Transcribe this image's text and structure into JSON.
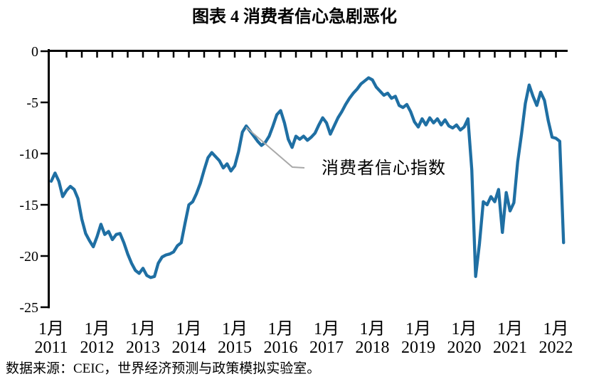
{
  "title": "图表 4 消费者信心急剧恶化",
  "source_note": "数据来源：CEIC，世界经济预测与政策模拟实验室。",
  "annotation": {
    "label": "消费者信心指数"
  },
  "colors": {
    "line": "#1F6FA3",
    "axis": "#000000",
    "annotation_line": "#A9A9A9",
    "text": "#000000",
    "background": "#FFFFFF"
  },
  "chart_data": {
    "type": "line",
    "title": "图表 4 消费者信心急剧恶化",
    "xlabel": "",
    "ylabel": "",
    "ylim": [
      -25,
      0
    ],
    "y_ticks": [
      0,
      -5,
      -10,
      -15,
      -20,
      -25
    ],
    "grid": false,
    "legend_position": "inline-annotation",
    "x_start": "2011-01",
    "x_end": "2022-03",
    "frequency": "monthly",
    "x_tick_month_label": "1月",
    "x_tick_years": [
      "2011",
      "2012",
      "2013",
      "2014",
      "2015",
      "2016",
      "2017",
      "2018",
      "2019",
      "2020",
      "2021",
      "2022"
    ],
    "minor_x_ticks_every_months": 4,
    "series": [
      {
        "name": "消费者信心指数",
        "values": [
          -12.7,
          -11.9,
          -12.7,
          -14.2,
          -13.6,
          -13.2,
          -13.5,
          -14.4,
          -16.4,
          -17.8,
          -18.5,
          -19.1,
          -18.1,
          -16.9,
          -17.9,
          -17.6,
          -18.4,
          -17.9,
          -17.8,
          -18.7,
          -19.8,
          -20.7,
          -21.4,
          -21.7,
          -21.2,
          -21.9,
          -22.1,
          -22.0,
          -20.7,
          -20.1,
          -19.9,
          -19.8,
          -19.6,
          -19.0,
          -18.7,
          -16.8,
          -15.0,
          -14.7,
          -13.9,
          -12.9,
          -11.6,
          -10.4,
          -9.9,
          -10.3,
          -10.7,
          -11.4,
          -11.0,
          -11.7,
          -11.2,
          -9.8,
          -7.9,
          -7.3,
          -7.8,
          -8.3,
          -8.8,
          -9.2,
          -8.9,
          -8.3,
          -7.3,
          -6.2,
          -5.8,
          -7.0,
          -8.6,
          -9.4,
          -8.3,
          -8.6,
          -8.3,
          -8.7,
          -8.4,
          -8.0,
          -7.2,
          -6.5,
          -7.0,
          -8.1,
          -7.3,
          -6.5,
          -5.9,
          -5.2,
          -4.6,
          -4.1,
          -3.7,
          -3.2,
          -2.9,
          -2.6,
          -2.8,
          -3.5,
          -3.9,
          -4.3,
          -4.1,
          -4.6,
          -4.4,
          -5.3,
          -5.5,
          -5.2,
          -5.9,
          -6.9,
          -7.4,
          -6.6,
          -7.2,
          -6.5,
          -7.0,
          -6.6,
          -7.2,
          -6.7,
          -7.3,
          -7.5,
          -7.2,
          -7.7,
          -7.4,
          -6.6,
          -11.6,
          -22.0,
          -18.8,
          -14.7,
          -15.0,
          -14.2,
          -14.7,
          -13.5,
          -17.7,
          -13.8,
          -15.6,
          -14.8,
          -10.8,
          -8.1,
          -5.1,
          -3.3,
          -4.4,
          -5.3,
          -4.0,
          -4.8,
          -6.8,
          -8.4,
          -8.5,
          -8.8,
          -18.7
        ]
      }
    ],
    "annotation": {
      "text": "消费者信心指数",
      "points_to": {
        "month": "2015-04",
        "value": -7.3
      }
    }
  }
}
